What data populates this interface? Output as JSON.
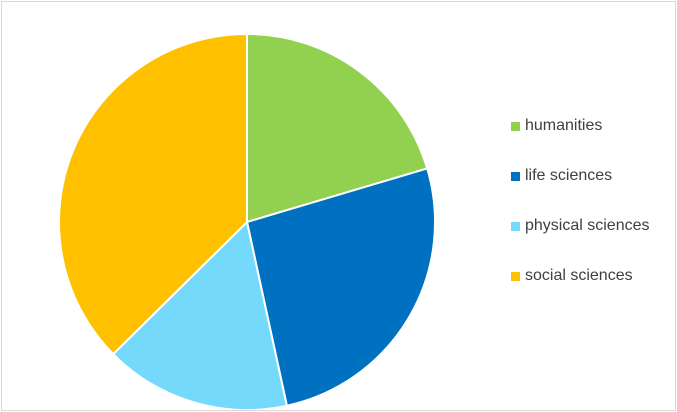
{
  "chart_data": {
    "type": "pie",
    "title": "",
    "slices": [
      {
        "label": "humanities",
        "value": 20.4,
        "color": "#92d050"
      },
      {
        "label": "life sciences",
        "value": 26.2,
        "color": "#0070c0"
      },
      {
        "label": "physical sciences",
        "value": 16.0,
        "color": "#75d9fb"
      },
      {
        "label": "social sciences",
        "value": 37.4,
        "color": "#ffc000"
      }
    ],
    "start_angle_deg": 0,
    "direction": "clockwise",
    "legend_position": "right"
  }
}
